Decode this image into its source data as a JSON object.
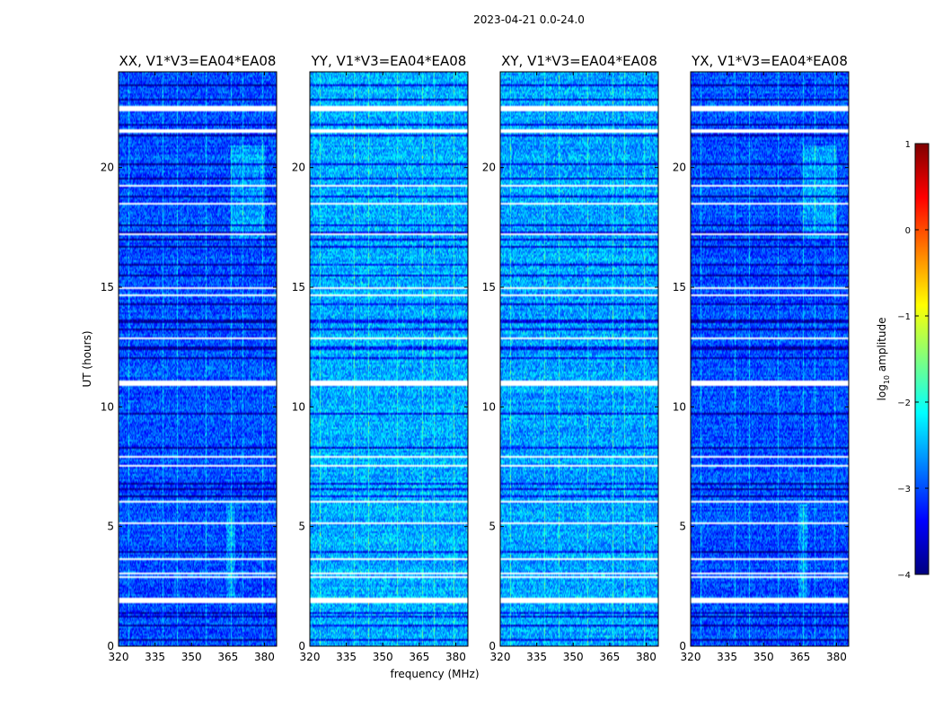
{
  "chart_data": {
    "type": "heatmap",
    "suptitle": "2023-04-21 0.0-24.0",
    "xlabel": "frequency (MHz)",
    "ylabel": "UT (hours)",
    "xlim": [
      320,
      385
    ],
    "ylim": [
      0,
      24
    ],
    "xticks": [
      320,
      335,
      350,
      365,
      380
    ],
    "xtick_labels": [
      "320",
      "335",
      "350",
      "365",
      "380"
    ],
    "yticks": [
      0,
      5,
      10,
      15,
      20
    ],
    "ytick_labels": [
      "0",
      "5",
      "10",
      "15",
      "20"
    ],
    "colorbar": {
      "label": "log10 amplitude",
      "label_main": "log",
      "label_sub": "10",
      "label_rest": " amplitude",
      "range": [
        -4,
        1
      ],
      "ticks": [
        1,
        0,
        -1,
        -2,
        -3,
        -4
      ],
      "tick_labels": [
        "1",
        "0",
        "−1",
        "−2",
        "−3",
        "−4"
      ],
      "colormap": "jet",
      "colors": [
        "#00007f",
        "#0000ff",
        "#007fff",
        "#00ffff",
        "#7fff7f",
        "#ffff00",
        "#ff7f00",
        "#ff0000",
        "#7f0000"
      ]
    },
    "panels": [
      {
        "title": "XX, V1*V3=EA04*EA08",
        "baseline": -3.0,
        "variant": 0
      },
      {
        "title": "YY, V1*V3=EA04*EA08",
        "baseline": -2.55,
        "variant": 1
      },
      {
        "title": "XY, V1*V3=EA04*EA08",
        "baseline": -2.6,
        "variant": 2
      },
      {
        "title": "YX, V1*V3=EA04*EA08",
        "baseline": -3.0,
        "variant": 3
      }
    ],
    "flagged_hours": [
      1.95,
      11.05,
      21.55,
      22.5,
      7.95,
      7.6,
      5.2,
      3.65,
      3.1,
      2.9,
      17.25,
      15.0,
      14.7,
      12.9,
      6.05,
      18.55,
      19.3
    ],
    "dark_hours": [
      0.3,
      0.9,
      1.25,
      1.4,
      4.0,
      6.3,
      6.6,
      6.85,
      8.3,
      9.75,
      12.1,
      12.45,
      12.55,
      13.3,
      13.55,
      13.65,
      14.35,
      15.5,
      16.0,
      16.7,
      17.0,
      17.3,
      17.6,
      18.8,
      19.6,
      20.2,
      21.4,
      21.8,
      22.9,
      23.45
    ],
    "rfi_channels_mhz": [
      324,
      338,
      344,
      356,
      366,
      371,
      379
    ]
  }
}
